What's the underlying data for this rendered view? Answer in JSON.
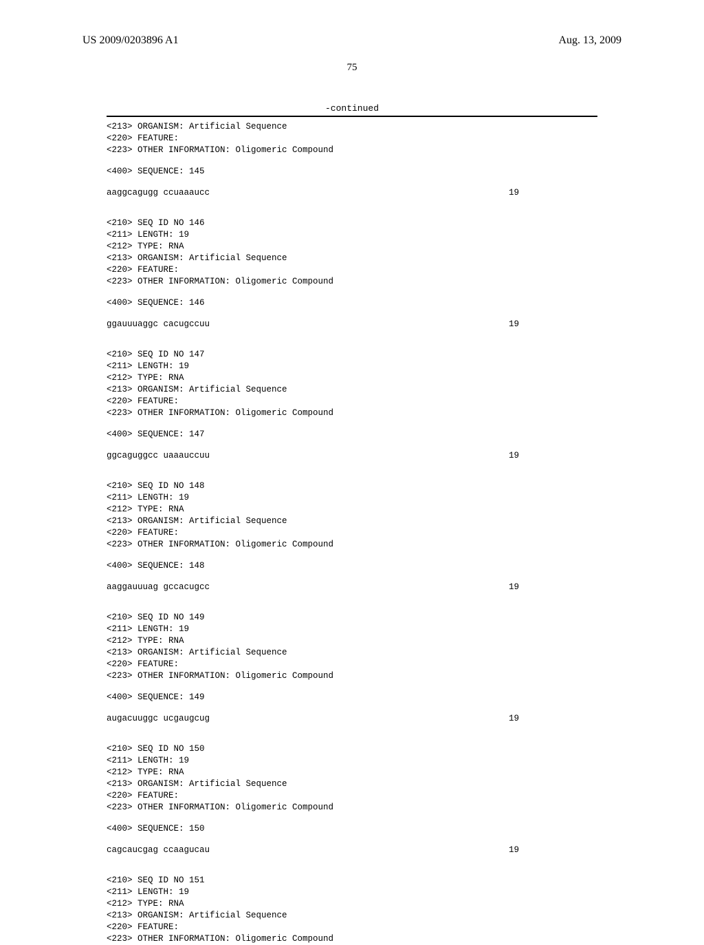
{
  "header": {
    "pub_number": "US 2009/0203896 A1",
    "date": "Aug. 13, 2009",
    "page_number": "75",
    "continued": "-continued"
  },
  "entries": [
    {
      "preamble_lines": [
        "<213> ORGANISM: Artificial Sequence",
        "<220> FEATURE:",
        "<223> OTHER INFORMATION: Oligomeric Compound"
      ],
      "sequence_label": "<400> SEQUENCE: 145",
      "sequence": "aaggcagugg ccuaaaucc",
      "length_num": "19"
    },
    {
      "preamble_lines": [
        "<210> SEQ ID NO 146",
        "<211> LENGTH: 19",
        "<212> TYPE: RNA",
        "<213> ORGANISM: Artificial Sequence",
        "<220> FEATURE:",
        "<223> OTHER INFORMATION: Oligomeric Compound"
      ],
      "sequence_label": "<400> SEQUENCE: 146",
      "sequence": "ggauuuaggc cacugccuu",
      "length_num": "19"
    },
    {
      "preamble_lines": [
        "<210> SEQ ID NO 147",
        "<211> LENGTH: 19",
        "<212> TYPE: RNA",
        "<213> ORGANISM: Artificial Sequence",
        "<220> FEATURE:",
        "<223> OTHER INFORMATION: Oligomeric Compound"
      ],
      "sequence_label": "<400> SEQUENCE: 147",
      "sequence": "ggcaguggcc uaaauccuu",
      "length_num": "19"
    },
    {
      "preamble_lines": [
        "<210> SEQ ID NO 148",
        "<211> LENGTH: 19",
        "<212> TYPE: RNA",
        "<213> ORGANISM: Artificial Sequence",
        "<220> FEATURE:",
        "<223> OTHER INFORMATION: Oligomeric Compound"
      ],
      "sequence_label": "<400> SEQUENCE: 148",
      "sequence": "aaggauuuag gccacugcc",
      "length_num": "19"
    },
    {
      "preamble_lines": [
        "<210> SEQ ID NO 149",
        "<211> LENGTH: 19",
        "<212> TYPE: RNA",
        "<213> ORGANISM: Artificial Sequence",
        "<220> FEATURE:",
        "<223> OTHER INFORMATION: Oligomeric Compound"
      ],
      "sequence_label": "<400> SEQUENCE: 149",
      "sequence": "augacuuggc ucgaugcug",
      "length_num": "19"
    },
    {
      "preamble_lines": [
        "<210> SEQ ID NO 150",
        "<211> LENGTH: 19",
        "<212> TYPE: RNA",
        "<213> ORGANISM: Artificial Sequence",
        "<220> FEATURE:",
        "<223> OTHER INFORMATION: Oligomeric Compound"
      ],
      "sequence_label": "<400> SEQUENCE: 150",
      "sequence": "cagcaucgag ccaagucau",
      "length_num": "19"
    }
  ],
  "trailing": {
    "preamble_lines": [
      "<210> SEQ ID NO 151",
      "<211> LENGTH: 19",
      "<212> TYPE: RNA",
      "<213> ORGANISM: Artificial Sequence",
      "<220> FEATURE:",
      "<223> OTHER INFORMATION: Oligomeric Compound"
    ]
  }
}
